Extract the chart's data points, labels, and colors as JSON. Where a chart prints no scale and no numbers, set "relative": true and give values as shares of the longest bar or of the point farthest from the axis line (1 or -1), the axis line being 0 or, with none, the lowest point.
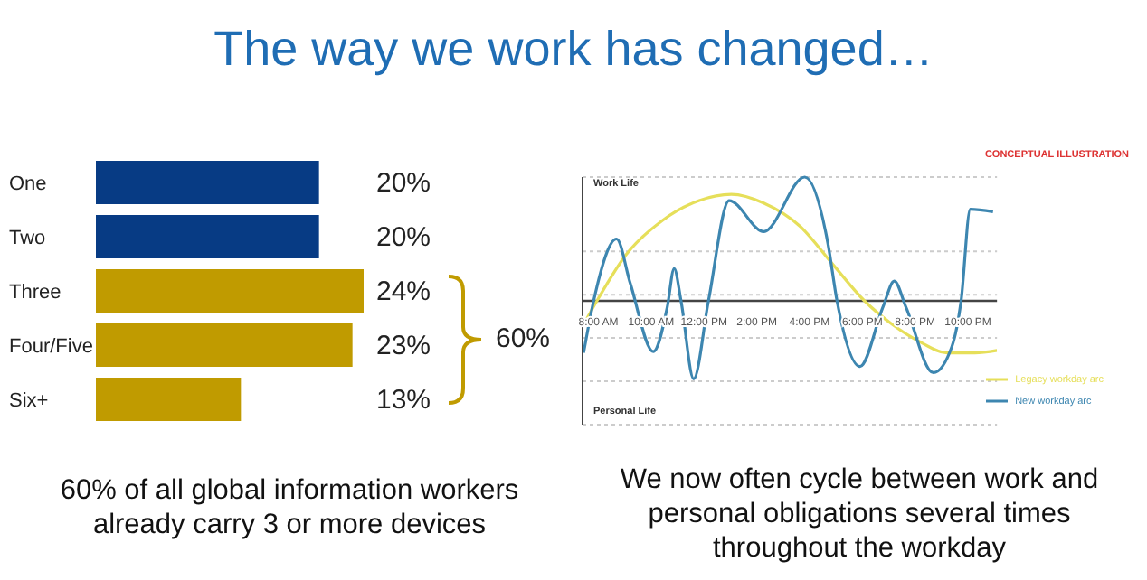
{
  "chart_data": [
    {
      "type": "bar",
      "orientation": "horizontal",
      "title": "The way we work has changed…",
      "categories": [
        "One",
        "Two",
        "Three",
        "Four/Five",
        "Six+"
      ],
      "values": [
        20,
        20,
        24,
        23,
        13
      ],
      "colors": [
        "#073b84",
        "#073b84",
        "#c09b00",
        "#c09b00",
        "#c09b00"
      ],
      "value_labels": [
        "20%",
        "20%",
        "24%",
        "23%",
        "13%"
      ],
      "annotations": [
        "60%",
        "60% of all global information workers already carry 3 or more devices"
      ]
    },
    {
      "type": "line",
      "relative": true,
      "xlim": [
        7.4,
        23.1
      ],
      "xticks": [
        {
          "value": 8,
          "label": "8:00 AM"
        },
        {
          "value": 10,
          "label": "10:00 AM"
        },
        {
          "value": 12,
          "label": "12:00 PM"
        },
        {
          "value": 14,
          "label": "2:00 PM"
        },
        {
          "value": 16,
          "label": "4:00 PM"
        },
        {
          "value": 18,
          "label": "6:00 PM"
        },
        {
          "value": 20,
          "label": "8:00 PM"
        },
        {
          "value": 22,
          "label": "10:00 PM"
        }
      ],
      "series": [
        {
          "name": "Legacy workday arc",
          "color": "#e6df5a",
          "x": [
            7.44,
            8.0,
            9.04,
            10.43,
            11.82,
            13.04,
            14.26,
            15.65,
            16.86,
            18.08,
            19.13,
            20.17,
            21.21,
            22.26,
            23.1
          ],
          "values": [
            -0.19,
            0.02,
            0.37,
            0.65,
            0.81,
            0.86,
            0.79,
            0.6,
            0.3,
            0,
            -0.19,
            -0.33,
            -0.42,
            -0.42,
            -0.4
          ]
        },
        {
          "name": "New workday arc",
          "color": "#3d86b0",
          "x": [
            7.44,
            7.82,
            8.69,
            9.21,
            10.08,
            10.61,
            10.87,
            11.13,
            11.61,
            12.17,
            12.95,
            14.26,
            15.82,
            16.69,
            17.04,
            17.91,
            18.78,
            19.21,
            19.65,
            20.69,
            21.39,
            21.74,
            22.09,
            22.95
          ],
          "values": [
            -0.42,
            0,
            0.5,
            0.14,
            -0.41,
            -0.05,
            0.26,
            0,
            -0.63,
            0,
            0.81,
            0.56,
            1,
            0.47,
            0,
            -0.53,
            -0.05,
            0.16,
            -0.05,
            -0.58,
            -0.37,
            0,
            0.74,
            0.72
          ]
        }
      ],
      "grid": "y",
      "legend": "bottom right",
      "marker": "none",
      "line_style": "solid",
      "annotations": [
        "CONCEPTUAL ILLUSTRATION",
        "Work Life",
        "Personal Life",
        "We now often cycle between work and personal obligations several times throughout the workday"
      ]
    }
  ]
}
